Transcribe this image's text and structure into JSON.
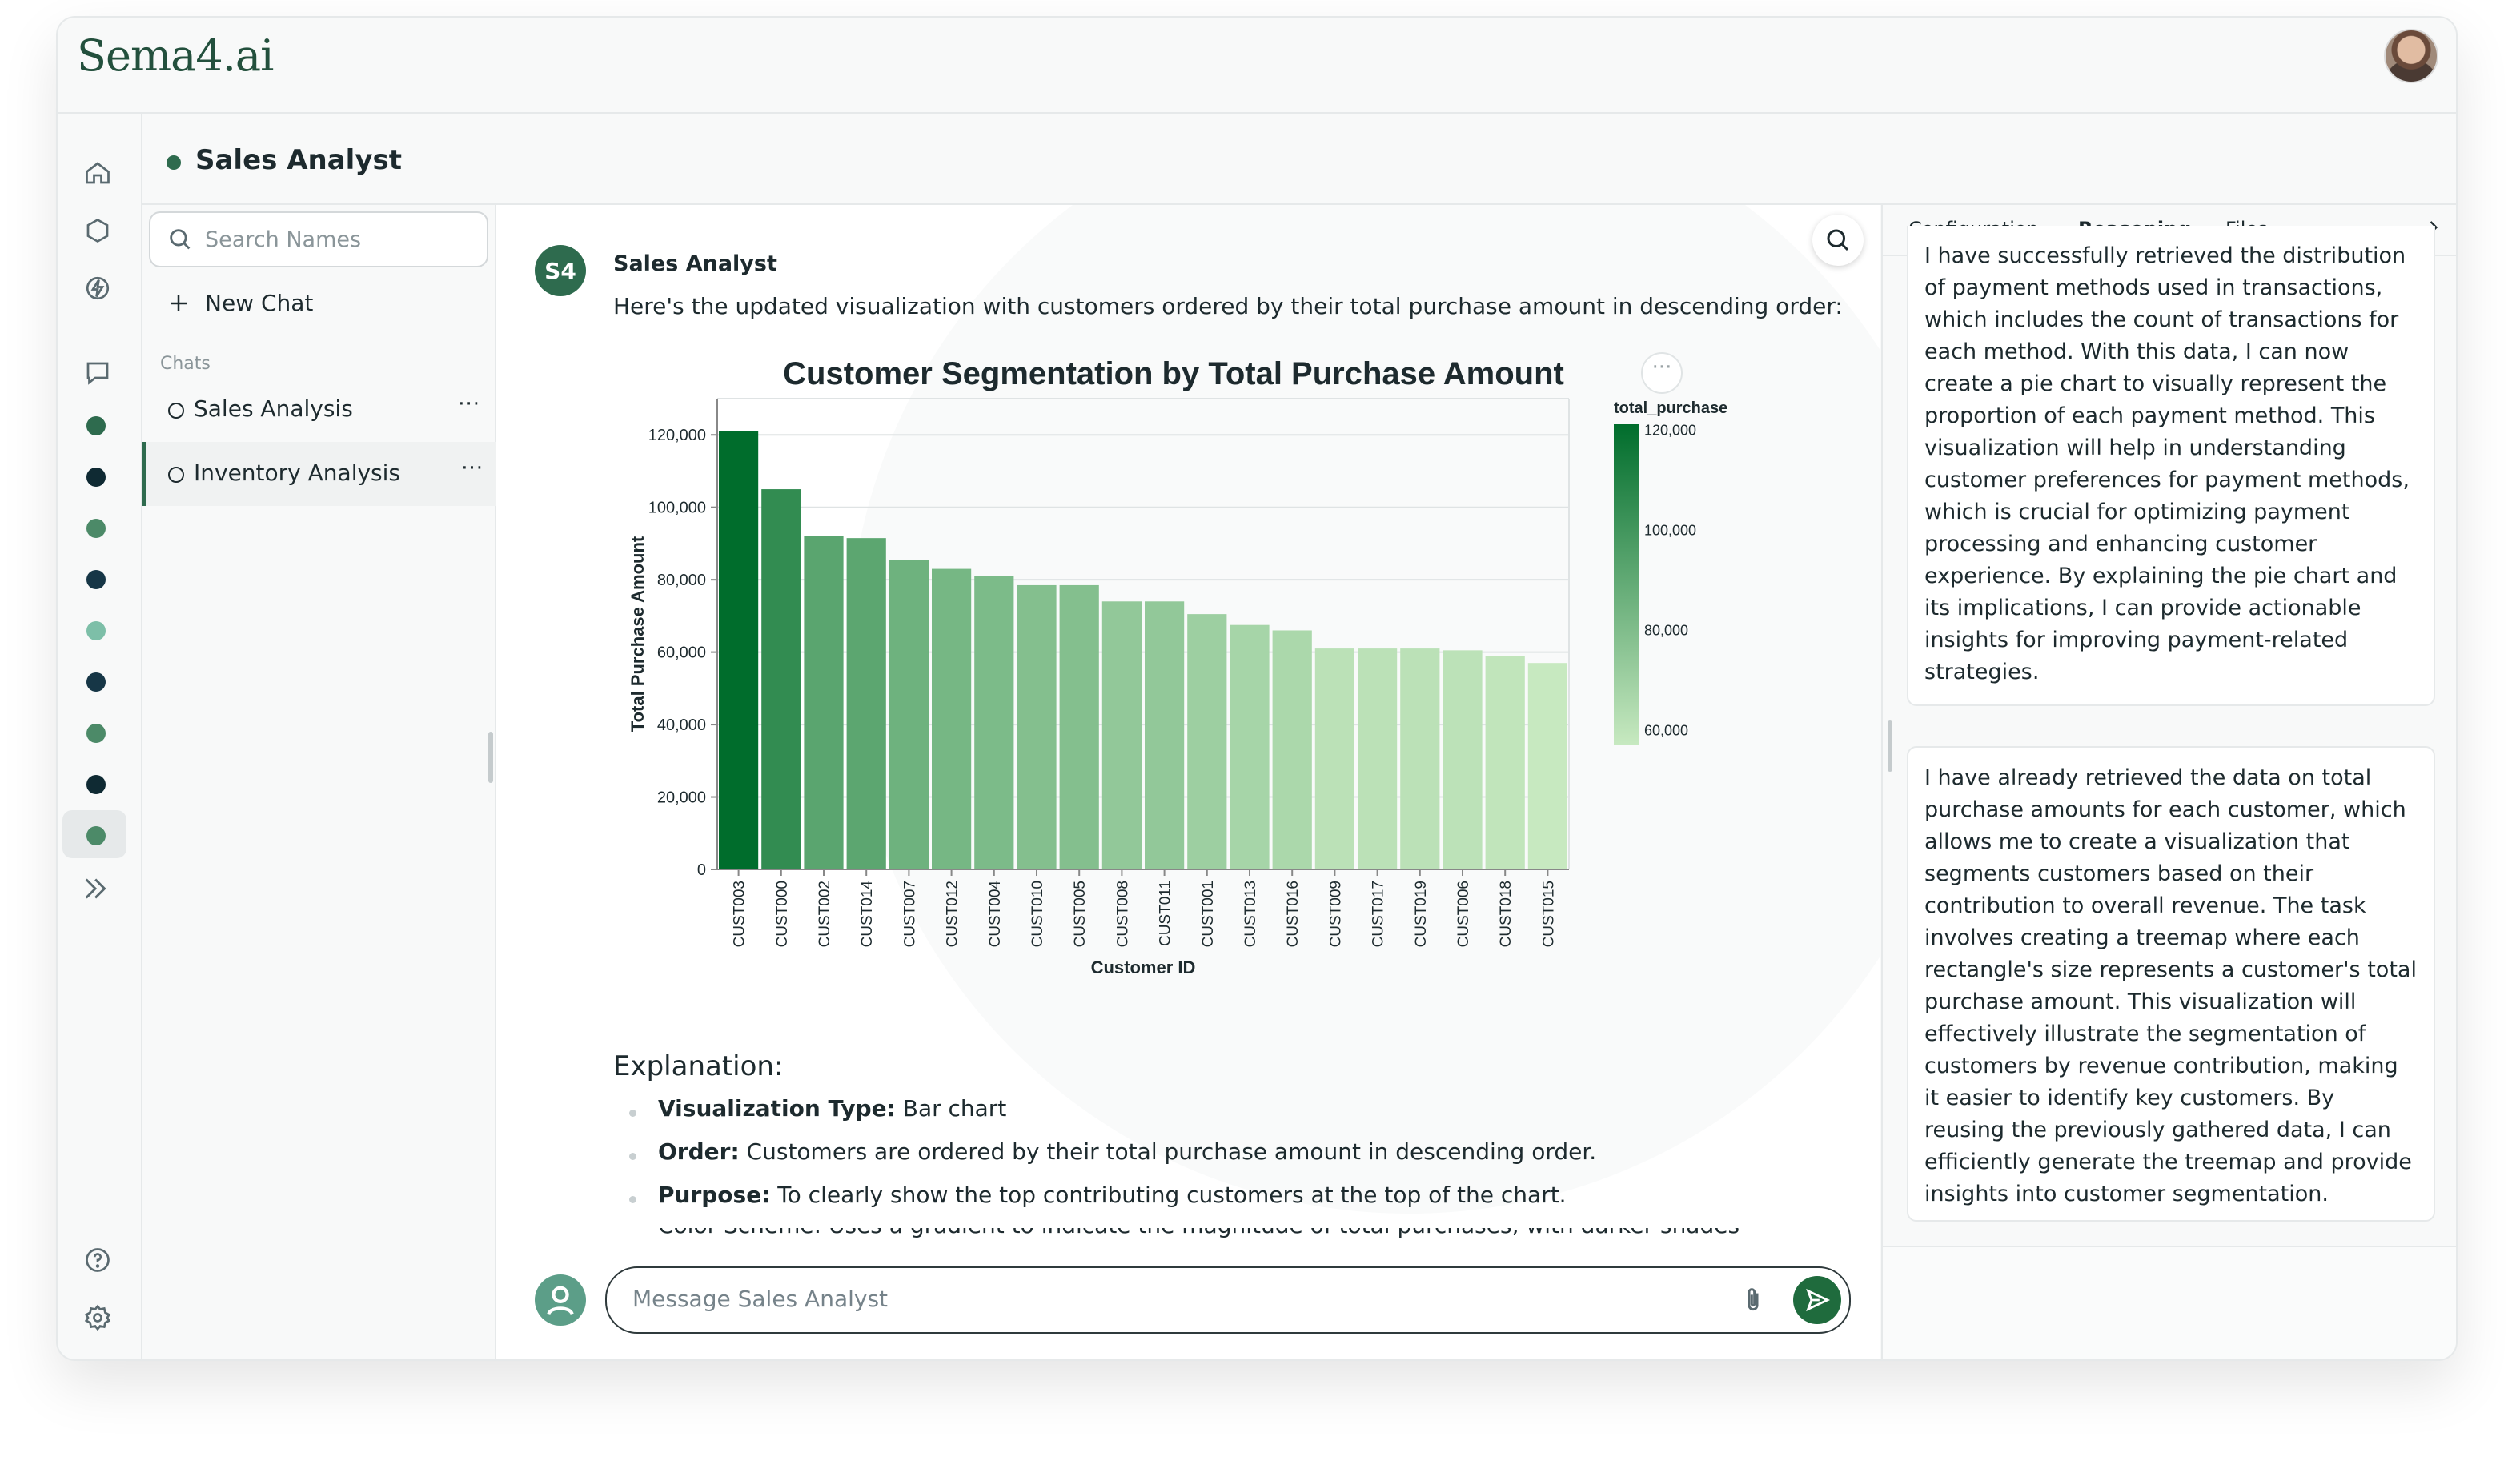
{
  "app": {
    "logo": "Sema4.ai"
  },
  "header": {
    "agent_name": "Sales Analyst"
  },
  "sidebar": {
    "search_placeholder": "Search Names",
    "new_chat_label": "New Chat",
    "chats_section_label": "Chats",
    "chats": [
      {
        "label": "Sales Analysis",
        "more": "···"
      },
      {
        "label": "Inventory Analysis",
        "more": "···"
      }
    ]
  },
  "rail": {
    "icons": [
      "home-icon",
      "cube-icon",
      "bolt-icon",
      "chat-bubble-icon",
      "double-chevron-right-icon",
      "help-icon",
      "settings-icon"
    ],
    "agent_dot_colors": [
      "#2e6b4e",
      "#0f2a33",
      "#4c8a68",
      "#163646",
      "#7dbfa8",
      "#163646",
      "#4c8a68",
      "#0f2a33",
      "#4c8a68"
    ]
  },
  "chat": {
    "sender_initials": "S4",
    "sender_name": "Sales Analyst",
    "message": "Here's the updated visualization with customers ordered by their total purchase amount in descending order:",
    "explanation_title": "Explanation:",
    "bullets": [
      {
        "label": "Visualization Type:",
        "text": " Bar chart"
      },
      {
        "label": "Order:",
        "text": " Customers are ordered by their total purchase amount in descending order."
      },
      {
        "label": "Purpose:",
        "text": " To clearly show the top contributing customers at the top of the chart."
      }
    ],
    "clipped_line": "Color Scheme: Uses a gradient to indicate the magnitude of total purchases, with darker shades representing",
    "input_placeholder": "Message Sales Analyst",
    "chart_more": "···"
  },
  "chart_data": {
    "type": "bar",
    "title": "Customer Segmentation by Total Purchase Amount",
    "xlabel": "Customer ID",
    "ylabel": "Total Purchase Amount",
    "ylim": [
      0,
      130000
    ],
    "yticks": [
      0,
      20000,
      40000,
      60000,
      80000,
      100000,
      120000
    ],
    "ytick_labels": [
      "0",
      "20,000",
      "40,000",
      "60,000",
      "80,000",
      "100,000",
      "120,000"
    ],
    "categories": [
      "CUST003",
      "CUST000",
      "CUST002",
      "CUST014",
      "CUST007",
      "CUST012",
      "CUST004",
      "CUST010",
      "CUST005",
      "CUST008",
      "CUST011",
      "CUST001",
      "CUST013",
      "CUST016",
      "CUST009",
      "CUST017",
      "CUST019",
      "CUST006",
      "CUST018",
      "CUST015"
    ],
    "values": [
      121000,
      105000,
      92000,
      91500,
      85500,
      83000,
      81000,
      78500,
      78500,
      74000,
      74000,
      70500,
      67500,
      66000,
      61000,
      61000,
      61000,
      60500,
      59000,
      57000
    ],
    "grid": true,
    "legend": {
      "title": "total_purchase",
      "position": "right",
      "range": [
        57000,
        121000
      ],
      "ticks": [
        "120,000",
        "100,000",
        "80,000",
        "60,000"
      ],
      "tick_values": [
        120000,
        100000,
        80000,
        60000
      ]
    },
    "colors": {
      "low": "#c7e9c0",
      "high": "#006d2c"
    }
  },
  "right_panel": {
    "tabs": [
      "Configuration",
      "Reasoning",
      "Files"
    ],
    "active_tab": "Reasoning",
    "reasoning": [
      "I have successfully retrieved the distribution of payment methods used in transactions, which includes the count of transactions for each method. With this data, I can now create a pie chart to visually represent the proportion of each payment method. This visualization will help in understanding customer preferences for payment methods, which is crucial for optimizing payment processing and enhancing customer experience. By explaining the pie chart and its implications, I can provide actionable insights for improving payment-related strategies.",
      "I have already retrieved the data on total purchase amounts for each customer, which allows me to create a visualization that segments customers based on their contribution to overall revenue. The task involves creating a treemap where each rectangle's size represents a customer's total purchase amount. This visualization will effectively illustrate the segmentation of customers by revenue contribution, making it easier to identify key customers. By reusing the previously gathered data, I can efficiently generate the treemap and provide insights into customer segmentation."
    ]
  }
}
